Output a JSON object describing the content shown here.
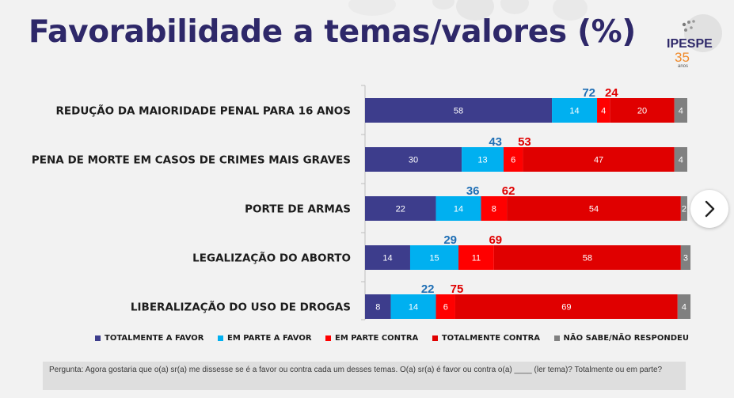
{
  "page": {
    "title": "Favorabilidade a temas/valores (%)",
    "logo": {
      "name": "IPESPE",
      "years": "35",
      "years_label": "anos"
    }
  },
  "colors": {
    "totalmente_a_favor": "#3d3d8c",
    "em_parte_a_favor": "#00b0f0",
    "em_parte_contra": "#ff0000",
    "totalmente_contra": "#e00000",
    "nao_sabe": "#808080",
    "favor_total_label": "#1f6fb5",
    "contra_total_label": "#e00000",
    "title": "#2e2869"
  },
  "chart_data": {
    "type": "bar",
    "orientation": "horizontal",
    "stacked": true,
    "percent_scale": true,
    "xlim": [
      0,
      100
    ],
    "categories": [
      "REDUÇÃO DA MAIORIDADE PENAL PARA 16 ANOS",
      "PENA DE MORTE EM CASOS DE CRIMES MAIS GRAVES",
      "PORTE DE ARMAS",
      "LEGALIZAÇÃO DO ABORTO",
      "LIBERALIZAÇÃO DO USO DE DROGAS"
    ],
    "series": [
      {
        "name": "TOTALMENTE A FAVOR",
        "values": [
          58,
          30,
          22,
          14,
          8
        ]
      },
      {
        "name": "EM PARTE A FAVOR",
        "values": [
          14,
          13,
          14,
          15,
          14
        ]
      },
      {
        "name": "EM PARTE CONTRA",
        "values": [
          4,
          6,
          8,
          11,
          6
        ]
      },
      {
        "name": "TOTALMENTE CONTRA",
        "values": [
          20,
          47,
          54,
          58,
          69
        ]
      },
      {
        "name": "NÃO SABE/NÃO RESPONDEU",
        "values": [
          4,
          4,
          2,
          3,
          4
        ]
      }
    ],
    "favor_totals": [
      72,
      43,
      36,
      29,
      22
    ],
    "contra_totals": [
      24,
      53,
      62,
      69,
      75
    ],
    "legend_position": "bottom",
    "grid": false
  },
  "footnote": "Pergunta: Agora gostaria que o(a) sr(a) me dissesse se é a favor ou contra cada um desses temas. O(a) sr(a) é favor ou contra o(a) ____ (ler tema)? Totalmente ou em parte?",
  "navigation": {
    "next_icon": "chevron-right-icon"
  }
}
